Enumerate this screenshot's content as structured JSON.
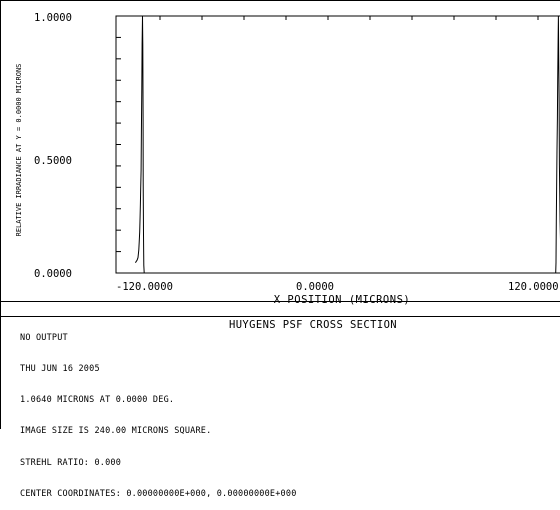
{
  "chart_data": {
    "type": "line",
    "title": "",
    "xlabel": "X POSITION (MICRONS)",
    "ylabel": "RELATIVE IRRADIANCE AT Y = 0.0000 MICRONS",
    "xlim": [
      -120,
      120
    ],
    "ylim": [
      0,
      1
    ],
    "x_tick_labels": [
      "-120.0000",
      "0.0000",
      "120.0000"
    ],
    "y_tick_labels": [
      "0.0000",
      "0.5000",
      "1.0000"
    ],
    "grid": false,
    "series": [
      {
        "x": [
          -125.0,
          -124.0,
          -123.5,
          -123.0,
          -122.8,
          -122.5,
          -122.3,
          -122.1,
          -121.9,
          -121.7,
          -121.5,
          -121.3,
          -121.1,
          -120.9,
          -120.7,
          -120.55,
          -120.45,
          -120.3,
          -120.1,
          -119.9,
          -119.0,
          -118.0
        ],
        "y": [
          0.04,
          0.05,
          0.06,
          0.09,
          0.12,
          0.16,
          0.22,
          0.27,
          0.33,
          0.4,
          0.55,
          0.72,
          0.89,
          1.0,
          0.89,
          0.6,
          0.35,
          0.15,
          0.03,
          0.0,
          0.0,
          0.0
        ]
      },
      {
        "x": [
          118.0,
          119.0,
          119.8,
          120.0,
          120.2,
          120.4,
          120.6,
          120.8,
          121.0,
          121.2,
          121.4,
          121.6,
          121.8,
          122.0,
          122.2,
          122.4,
          122.6,
          122.8,
          123.2,
          123.8
        ],
        "y": [
          0.0,
          0.0,
          0.0,
          0.04,
          0.2,
          0.36,
          0.48,
          0.6,
          0.75,
          0.9,
          1.0,
          0.85,
          0.68,
          0.42,
          0.3,
          0.2,
          0.13,
          0.09,
          0.06,
          0.05
        ]
      }
    ]
  },
  "caption": {
    "title": "HUYGENS PSF CROSS SECTION",
    "lines": [
      "NO OUTPUT",
      "THU JUN 16 2005",
      "1.0640 MICRONS AT 0.0000 DEG.",
      "IMAGE SIZE IS 240.00 MICRONS SQUARE.",
      "STREHL RATIO: 0.000",
      "CENTER COORDINATES: 0.00000000E+000, 0.00000000E+000"
    ]
  },
  "colors": {
    "line": "#000000",
    "background": "#ffffff"
  }
}
